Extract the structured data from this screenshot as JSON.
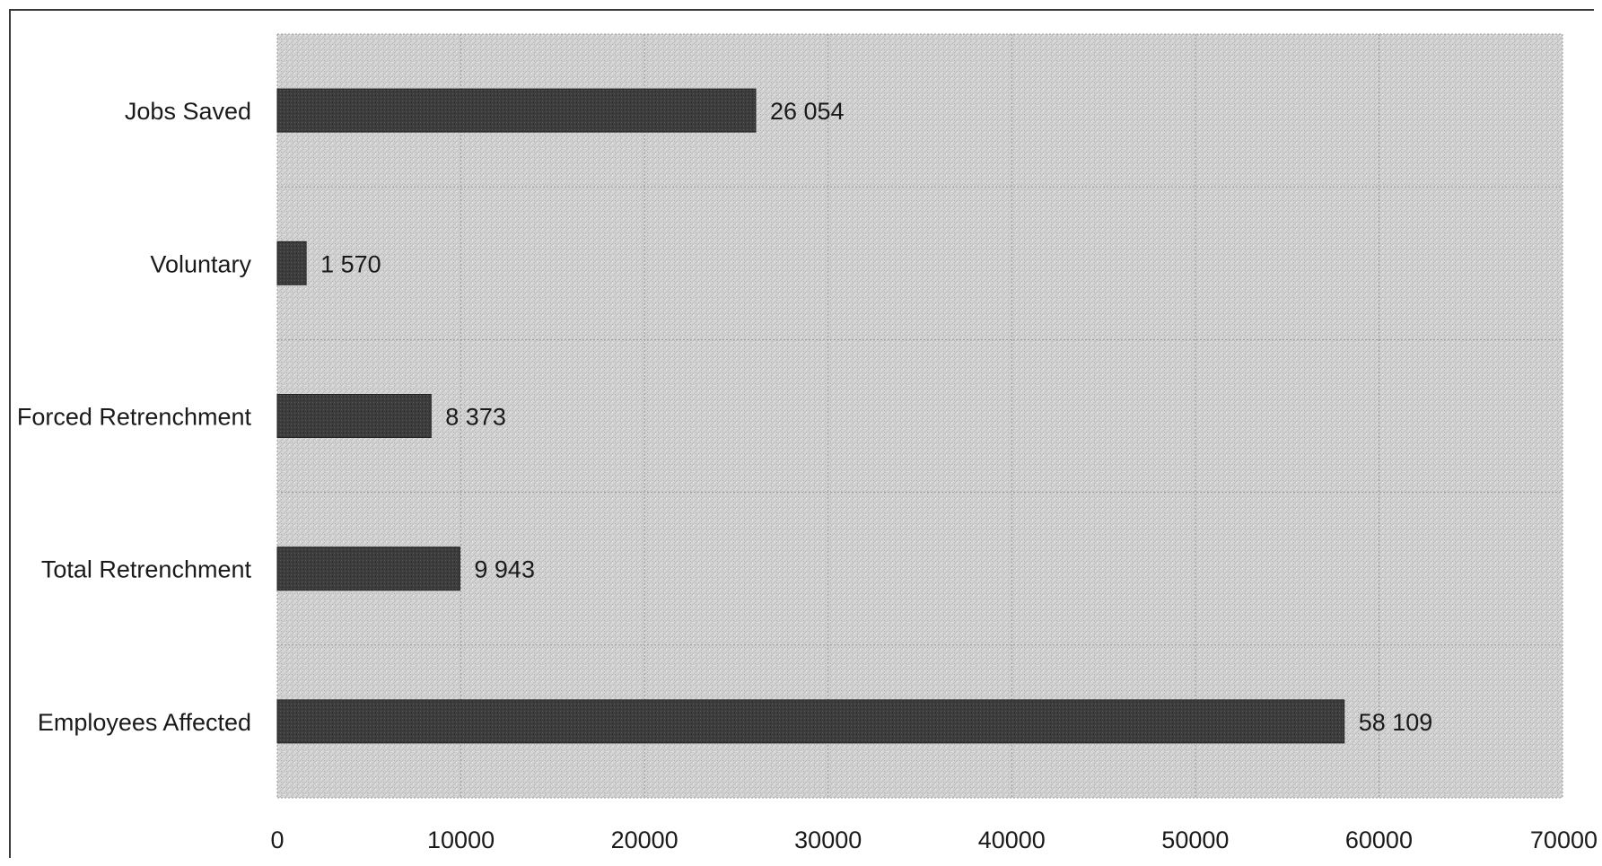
{
  "chart_data": {
    "type": "bar",
    "orientation": "horizontal",
    "title": "",
    "xlabel": "",
    "ylabel": "",
    "categories": [
      "Jobs Saved",
      "Voluntary",
      "Forced Retrenchment",
      "Total Retrenchment",
      "Employees Affected"
    ],
    "values": [
      26054,
      1570,
      8373,
      9943,
      58109
    ],
    "value_labels": [
      "26 054",
      "1 570",
      "8 373",
      "9 943",
      "58 109"
    ],
    "xlim": [
      0,
      70000
    ],
    "x_ticks": [
      0,
      10000,
      20000,
      30000,
      40000,
      50000,
      60000,
      70000
    ],
    "x_tick_labels": [
      "0",
      "10000",
      "20000",
      "30000",
      "40000",
      "50000",
      "60000",
      "70000"
    ],
    "grid": true,
    "legend": "none",
    "colors": {
      "bar": "#3c3c3c",
      "plot_background": "#d6d6d6",
      "grid": "#9a9a9a",
      "text": "#1a1a1a"
    }
  }
}
